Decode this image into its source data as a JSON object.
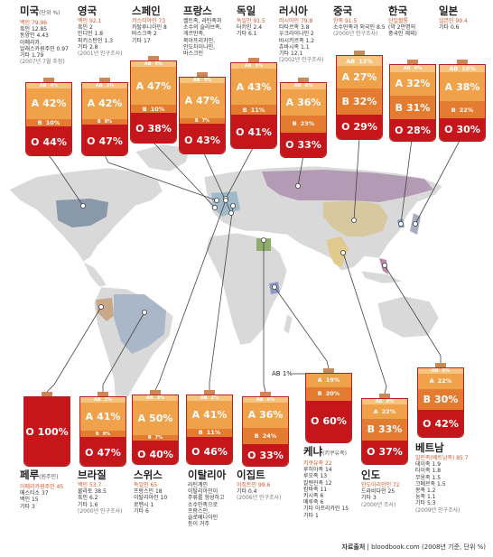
{
  "colors": {
    "A": "#f0a24b",
    "B": "#e37b30",
    "AB": "#f6c47f",
    "O": "#c5161c"
  },
  "icons": [
    "blood-bag-icon"
  ],
  "labels": {
    "ab_pointer": "AB 1%"
  },
  "footer": {
    "source_label": "자료출처",
    "source_text": "bloodbook.com (2008년 기준, 단위 %)"
  },
  "countries": [
    {
      "name": "미국",
      "unit": "(단위 %)",
      "eth": [
        {
          "t": "백인 79.96",
          "hl": true
        },
        {
          "t": "흑인 12.85"
        },
        {
          "t": "동양인 4.43"
        },
        {
          "t": "아메리카,"
        },
        {
          "t": "알래스카원주민 0.97"
        },
        {
          "t": "기타 1.79"
        },
        {
          "t": "(2007년 7월 추정)",
          "note": true
        }
      ],
      "blood": [
        {
          "type": "AB",
          "pct": 4
        },
        {
          "type": "B",
          "pct": 10
        },
        {
          "type": "A",
          "pct": 42
        },
        {
          "type": "O",
          "pct": 44
        }
      ]
    },
    {
      "name": "영국",
      "eth": [
        {
          "t": "백인 92.1",
          "hl": true
        },
        {
          "t": "흑인 2"
        },
        {
          "t": "인디언 1.8"
        },
        {
          "t": "파키스탄인 1.3"
        },
        {
          "t": "기타 2.8"
        },
        {
          "t": "(2001년 인구조사)",
          "note": true
        }
      ],
      "blood": [
        {
          "type": "AB",
          "pct": 3
        },
        {
          "type": "B",
          "pct": 8
        },
        {
          "type": "A",
          "pct": 42
        },
        {
          "type": "O",
          "pct": 47
        }
      ]
    },
    {
      "name": "스페인",
      "eth": [
        {
          "t": "카스티야인 73",
          "hl": true
        },
        {
          "t": "카탈루니아인 8"
        },
        {
          "t": "바스크족 2"
        },
        {
          "t": "기타 17"
        }
      ],
      "blood": [
        {
          "type": "AB",
          "pct": 5
        },
        {
          "type": "B",
          "pct": 10
        },
        {
          "type": "A",
          "pct": 47
        },
        {
          "type": "O",
          "pct": 38
        }
      ]
    },
    {
      "name": "프랑스",
      "eth": [
        {
          "t": "켈트족, 라틴족과"
        },
        {
          "t": "소수의 슬라브족,"
        },
        {
          "t": "게르만족,"
        },
        {
          "t": "북아프리카인,"
        },
        {
          "t": "인도차이나인,"
        },
        {
          "t": "바스크인"
        }
      ],
      "blood": [
        {
          "type": "AB",
          "pct": 3
        },
        {
          "type": "B",
          "pct": 7
        },
        {
          "type": "A",
          "pct": 47
        },
        {
          "type": "O",
          "pct": 43
        }
      ]
    },
    {
      "name": "독일",
      "eth": [
        {
          "t": "독일인 91.5",
          "hl": true
        },
        {
          "t": "터키인 2.4"
        },
        {
          "t": "기타 6.1"
        }
      ],
      "blood": [
        {
          "type": "AB",
          "pct": 5
        },
        {
          "type": "A",
          "pct": 43
        },
        {
          "type": "B",
          "pct": 11
        },
        {
          "type": "O",
          "pct": 41
        }
      ]
    },
    {
      "name": "러시아",
      "eth": [
        {
          "t": "러시아인 79.8",
          "hl": true
        },
        {
          "t": "타타르족 3.8"
        },
        {
          "t": "우크라이나인 2"
        },
        {
          "t": "바시키르족 1.2"
        },
        {
          "t": "츄바시족 1.1"
        },
        {
          "t": "기타 12.1"
        },
        {
          "t": "(2002년 인구조사)",
          "note": true
        }
      ],
      "blood": [
        {
          "type": "AB",
          "pct": 8
        },
        {
          "type": "A",
          "pct": 36
        },
        {
          "type": "B",
          "pct": 23
        },
        {
          "type": "O",
          "pct": 33
        }
      ]
    },
    {
      "name": "중국",
      "eth": [
        {
          "t": "한족 91.5",
          "hl": true
        },
        {
          "t": "소수민족과 외국인 8.5"
        },
        {
          "t": "(2000년 인구조사)",
          "note": true
        }
      ],
      "blood": [
        {
          "type": "AB",
          "pct": 12
        },
        {
          "type": "A",
          "pct": 27
        },
        {
          "type": "B",
          "pct": 32
        },
        {
          "type": "O",
          "pct": 29
        }
      ]
    },
    {
      "name": "한국",
      "eth": [
        {
          "t": "단일혈통",
          "hl": true
        },
        {
          "t": "(약 2만명의"
        },
        {
          "t": "중국인 제외)"
        }
      ],
      "blood": [
        {
          "type": "AB",
          "pct": 9
        },
        {
          "type": "A",
          "pct": 32
        },
        {
          "type": "B",
          "pct": 31
        },
        {
          "type": "O",
          "pct": 28
        }
      ]
    },
    {
      "name": "일본",
      "eth": [
        {
          "t": "일본인 99.4",
          "hl": true
        },
        {
          "t": "기타 0.6"
        }
      ],
      "blood": [
        {
          "type": "AB",
          "pct": 10
        },
        {
          "type": "A",
          "pct": 38
        },
        {
          "type": "B",
          "pct": 22
        },
        {
          "type": "O",
          "pct": 30
        }
      ]
    },
    {
      "name": "페루",
      "paren": "(원주민)",
      "eth": [
        {
          "t": "아메리카원주민 45",
          "hl": true
        },
        {
          "t": "메스티소 37"
        },
        {
          "t": "백인 15"
        },
        {
          "t": "기타 3"
        }
      ],
      "blood": [
        {
          "type": "O",
          "pct": 100
        }
      ]
    },
    {
      "name": "브라질",
      "eth": [
        {
          "t": "백인 53.7",
          "hl": true
        },
        {
          "t": "물라토 38.5"
        },
        {
          "t": "흑인 6.2"
        },
        {
          "t": "기타 1.6"
        },
        {
          "t": "(2000년 인구조사)",
          "note": true
        }
      ],
      "blood": [
        {
          "type": "AB",
          "pct": 3
        },
        {
          "type": "A",
          "pct": 41
        },
        {
          "type": "B",
          "pct": 9
        },
        {
          "type": "O",
          "pct": 47
        }
      ]
    },
    {
      "name": "스위스",
      "eth": [
        {
          "t": "독일인 65",
          "hl": true
        },
        {
          "t": "프랑스인 18"
        },
        {
          "t": "이탈리아인 10"
        },
        {
          "t": "로멘시 1"
        },
        {
          "t": "기타 6"
        }
      ],
      "blood": [
        {
          "type": "AB",
          "pct": 3
        },
        {
          "type": "A",
          "pct": 50
        },
        {
          "type": "B",
          "pct": 7
        },
        {
          "type": "O",
          "pct": 40
        }
      ]
    },
    {
      "name": "이탈리아",
      "eth": [
        {
          "t": "라틴계인"
        },
        {
          "t": "이탈리아인이"
        },
        {
          "t": "주류를 형성하고"
        },
        {
          "t": "소수민족으로"
        },
        {
          "t": "프랑스인,"
        },
        {
          "t": "슬로베니아인"
        },
        {
          "t": "등이 거주"
        }
      ],
      "blood": [
        {
          "type": "AB",
          "pct": 2
        },
        {
          "type": "A",
          "pct": 41
        },
        {
          "type": "B",
          "pct": 11
        },
        {
          "type": "O",
          "pct": 46
        }
      ]
    },
    {
      "name": "이집트",
      "eth": [
        {
          "t": "이집트인 99.6",
          "hl": true
        },
        {
          "t": "기타 0.4"
        },
        {
          "t": "(2006년 인구조사)",
          "note": true
        }
      ],
      "blood": [
        {
          "type": "AB",
          "pct": 6
        },
        {
          "type": "A",
          "pct": 36
        },
        {
          "type": "B",
          "pct": 24
        },
        {
          "type": "O",
          "pct": 33
        }
      ]
    },
    {
      "name": "케냐",
      "paren": "(키쿠유족)",
      "eth": [
        {
          "t": "키쿠유족 22",
          "hl": true
        },
        {
          "t": "루히아족 14"
        },
        {
          "t": "루오족 13"
        },
        {
          "t": "칼렌진족 12"
        },
        {
          "t": "캄바족 11"
        },
        {
          "t": "키시족 6"
        },
        {
          "t": "메루족 6"
        },
        {
          "t": "기타 아프리카인 15"
        },
        {
          "t": "기타 1"
        }
      ],
      "blood": [
        {
          "type": "A",
          "pct": 19
        },
        {
          "type": "B",
          "pct": 20
        },
        {
          "type": "O",
          "pct": 60
        }
      ]
    },
    {
      "name": "인도",
      "eth": [
        {
          "t": "인도아리안인 72",
          "hl": true
        },
        {
          "t": "드라비다인 25"
        },
        {
          "t": "기타 3"
        },
        {
          "t": "(2000년 조사)",
          "note": true
        }
      ],
      "blood": [
        {
          "type": "AB",
          "pct": 8
        },
        {
          "type": "A",
          "pct": 22
        },
        {
          "type": "B",
          "pct": 33
        },
        {
          "type": "O",
          "pct": 37
        }
      ]
    },
    {
      "name": "베트남",
      "eth": [
        {
          "t": "일린족(베트남족) 85.7",
          "hl": true
        },
        {
          "t": "테이족 1.9"
        },
        {
          "t": "타이족 1.8"
        },
        {
          "t": "무옹족 1.5"
        },
        {
          "t": "크메르족 1.5"
        },
        {
          "t": "몽족 1.2"
        },
        {
          "t": "눙족 1.1"
        },
        {
          "t": "기타 5.3"
        },
        {
          "t": "(2009년 인구조사)",
          "note": true
        }
      ],
      "blood": [
        {
          "type": "AB",
          "pct": 6
        },
        {
          "type": "A",
          "pct": 22
        },
        {
          "type": "B",
          "pct": 30
        },
        {
          "type": "O",
          "pct": 42
        }
      ]
    }
  ]
}
